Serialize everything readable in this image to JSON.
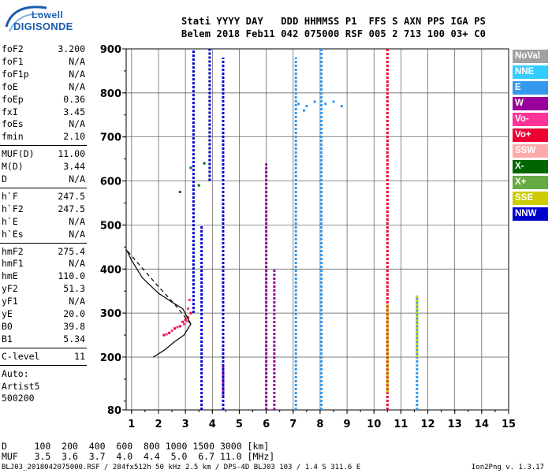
{
  "logo": {
    "line1": "Lowell",
    "line2": "DIGISONDE"
  },
  "header": {
    "row1": "Stati YYYY DAY   DDD HHMMSS P1  FFS S AXN PPS IGA PS",
    "row2": "Belem 2018 Feb11 042 075000 RSF 005 2 713 100 03+ C0"
  },
  "params_group1": [
    {
      "label": "foF2",
      "value": "3.200"
    },
    {
      "label": "foF1",
      "value": "N/A"
    },
    {
      "label": "foF1p",
      "value": "N/A"
    },
    {
      "label": "foE",
      "value": "N/A"
    },
    {
      "label": "foEp",
      "value": "0.36"
    },
    {
      "label": "fxI",
      "value": "3.45"
    },
    {
      "label": "foEs",
      "value": "N/A"
    },
    {
      "label": "fmin",
      "value": "2.10"
    }
  ],
  "params_group2": [
    {
      "label": "MUF(D)",
      "value": "11.00"
    },
    {
      "label": "M(D)",
      "value": "3.44"
    },
    {
      "label": "D",
      "value": "N/A"
    }
  ],
  "params_group3": [
    {
      "label": "h`F",
      "value": "247.5"
    },
    {
      "label": "h`F2",
      "value": "247.5"
    },
    {
      "label": "h`E",
      "value": "N/A"
    },
    {
      "label": "h`Es",
      "value": "N/A"
    }
  ],
  "params_group4": [
    {
      "label": "hmF2",
      "value": "275.4"
    },
    {
      "label": "hmF1",
      "value": "N/A"
    },
    {
      "label": "hmE",
      "value": "110.0"
    },
    {
      "label": "yF2",
      "value": "51.3"
    },
    {
      "label": "yF1",
      "value": "N/A"
    },
    {
      "label": "yE",
      "value": "20.0"
    },
    {
      "label": "B0",
      "value": "39.8"
    },
    {
      "label": "B1",
      "value": "5.34"
    }
  ],
  "params_group5": [
    {
      "label": "C-level",
      "value": "11"
    }
  ],
  "params_group6": [
    {
      "label": "Auto:",
      "value": ""
    },
    {
      "label": "Artist5",
      "value": ""
    },
    {
      "label": "500200",
      "value": ""
    }
  ],
  "legend": [
    {
      "label": "NoVal",
      "color": "#a0a0a0"
    },
    {
      "label": "NNE",
      "color": "#33ccff"
    },
    {
      "label": "E",
      "color": "#3399ee"
    },
    {
      "label": "W",
      "color": "#990099"
    },
    {
      "label": "Vo-",
      "color": "#ff3399"
    },
    {
      "label": "Vo+",
      "color": "#ee0033"
    },
    {
      "label": "SSW",
      "color": "#ffaaaa"
    },
    {
      "label": "X-",
      "color": "#006600"
    },
    {
      "label": "X+",
      "color": "#66aa44"
    },
    {
      "label": "SSE",
      "color": "#cccc00"
    },
    {
      "label": "NNW",
      "color": "#0000cc"
    }
  ],
  "bottom": {
    "d_row": "D     100  200  400  600  800 1000 1500 3000 [km]",
    "muf_row": "MUF   3.5  3.6  3.7  4.0  4.4  5.0  6.7 11.0 [MHz]"
  },
  "footer": {
    "left": "BLJ03_2018042075000.RSF / 284fx512h 50 kHz 2.5 km / DPS-4D BLJ03 103 / 1.4 S 311.6 E",
    "right": "Ion2Png v. 1.3.17"
  },
  "chart_data": {
    "type": "scatter",
    "title": "",
    "xlabel": "",
    "ylabel": "",
    "xlim": [
      0.8,
      15
    ],
    "ylim": [
      80,
      900
    ],
    "x_ticks": [
      1,
      2,
      3,
      4,
      5,
      6,
      7,
      8,
      9,
      10,
      11,
      12,
      13,
      14,
      15
    ],
    "y_ticks": [
      80,
      200,
      300,
      400,
      500,
      600,
      700,
      800,
      900
    ],
    "grid": true,
    "traces": [
      {
        "name": "W",
        "color": "#990099",
        "segments": [
          {
            "x": 6.0,
            "y0": 80,
            "y1": 640
          },
          {
            "x": 6.3,
            "y0": 80,
            "y1": 400
          },
          {
            "x": 4.4,
            "y0": 110,
            "y1": 180
          }
        ]
      },
      {
        "name": "E",
        "color": "#3399ee",
        "segments": [
          {
            "x": 7.1,
            "y0": 80,
            "y1": 880
          },
          {
            "x": 8.05,
            "y0": 80,
            "y1": 900
          },
          {
            "x": 11.6,
            "y0": 80,
            "y1": 340
          }
        ]
      },
      {
        "name": "NNW",
        "color": "#0000cc",
        "segments": [
          {
            "x": 3.3,
            "y0": 300,
            "y1": 900
          },
          {
            "x": 4.4,
            "y0": 80,
            "y1": 880
          },
          {
            "x": 3.6,
            "y0": 80,
            "y1": 500
          },
          {
            "x": 3.9,
            "y0": 600,
            "y1": 900
          }
        ]
      },
      {
        "name": "Vo+",
        "color": "#ee0033",
        "segments": [
          {
            "x": 10.5,
            "y0": 80,
            "y1": 900
          }
        ]
      },
      {
        "name": "SSE",
        "color": "#cccc00",
        "segments": [
          {
            "x": 10.5,
            "y0": 120,
            "y1": 320
          },
          {
            "x": 11.6,
            "y0": 200,
            "y1": 340
          }
        ]
      }
    ],
    "trace_point_clusters": [
      {
        "name": "Vo+",
        "color": "#ee0033",
        "points": [
          [
            2.2,
            250
          ],
          [
            2.4,
            255
          ],
          [
            2.6,
            265
          ],
          [
            2.8,
            270
          ],
          [
            2.9,
            280
          ],
          [
            3.0,
            285
          ],
          [
            3.1,
            290
          ],
          [
            3.2,
            300
          ]
        ]
      },
      {
        "name": "Vo-",
        "color": "#ff3399",
        "points": [
          [
            2.3,
            252
          ],
          [
            2.5,
            260
          ],
          [
            2.7,
            268
          ],
          [
            2.95,
            275
          ],
          [
            3.05,
            282
          ],
          [
            3.1,
            310
          ],
          [
            3.15,
            330
          ]
        ]
      },
      {
        "name": "X-",
        "color": "#006600",
        "points": [
          [
            3.5,
            590
          ],
          [
            3.7,
            640
          ],
          [
            2.8,
            575
          ],
          [
            3.2,
            630
          ]
        ]
      },
      {
        "name": "E",
        "color": "#3399ee",
        "points": [
          [
            7.2,
            775
          ],
          [
            7.5,
            770
          ],
          [
            7.8,
            780
          ],
          [
            8.2,
            775
          ],
          [
            8.5,
            780
          ],
          [
            8.8,
            770
          ],
          [
            7.4,
            760
          ]
        ]
      }
    ],
    "profile_curve": [
      [
        1.8,
        200
      ],
      [
        2.2,
        215
      ],
      [
        2.6,
        235
      ],
      [
        2.95,
        250
      ],
      [
        3.2,
        275
      ],
      [
        2.9,
        310
      ],
      [
        2.5,
        325
      ],
      [
        2.0,
        345
      ],
      [
        1.4,
        380
      ],
      [
        1.0,
        420
      ],
      [
        0.8,
        445
      ]
    ],
    "profile_curve_dashed": [
      [
        3.2,
        275
      ],
      [
        2.6,
        320
      ],
      [
        2.0,
        360
      ],
      [
        1.5,
        395
      ],
      [
        1.0,
        430
      ],
      [
        0.8,
        445
      ]
    ]
  }
}
